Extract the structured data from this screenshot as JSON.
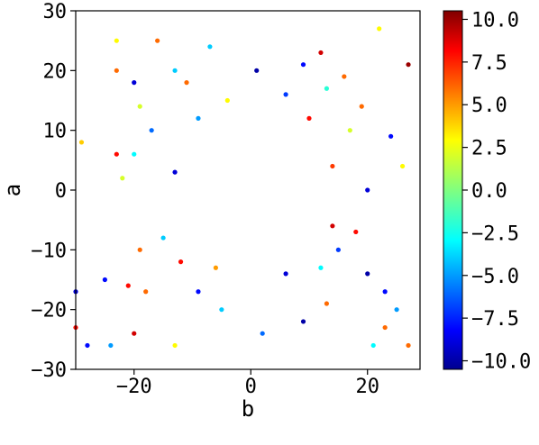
{
  "chart_data": {
    "type": "scatter",
    "title": "",
    "xlabel": "b",
    "ylabel": "a",
    "xlim": [
      -30,
      29
    ],
    "ylim": [
      -30,
      30
    ],
    "xticks": [
      -20,
      0,
      20
    ],
    "xtick_labels": [
      "−20",
      "0",
      "20"
    ],
    "yticks": [
      -30,
      -20,
      -10,
      0,
      10,
      20,
      30
    ],
    "ytick_labels": [
      "−30",
      "−20",
      "−10",
      "0",
      "10",
      "20",
      "30"
    ],
    "grid": false,
    "colorbar": {
      "min": -10.5,
      "max": 10.5,
      "colormap": "jet",
      "ticks": [
        10.0,
        7.5,
        5.0,
        2.5,
        0.0,
        -2.5,
        -5.0,
        -7.5,
        -10.0
      ],
      "tick_labels": [
        "10.0",
        "7.5",
        "5.0",
        "2.5",
        "0.0",
        "−2.5",
        "−5.0",
        "−7.5",
        "−10.0"
      ]
    },
    "points": [
      {
        "x": -23,
        "y": 25,
        "c": 3
      },
      {
        "x": -16,
        "y": 25,
        "c": 6
      },
      {
        "x": -7,
        "y": 24,
        "c": -4
      },
      {
        "x": 22,
        "y": 27,
        "c": 3
      },
      {
        "x": 27,
        "y": 21,
        "c": 10
      },
      {
        "x": 12,
        "y": 23,
        "c": 9
      },
      {
        "x": -20,
        "y": 18,
        "c": -9
      },
      {
        "x": -23,
        "y": 20,
        "c": 6
      },
      {
        "x": 1,
        "y": 20,
        "c": -10
      },
      {
        "x": 9,
        "y": 21,
        "c": -8
      },
      {
        "x": -13,
        "y": 20,
        "c": -4
      },
      {
        "x": 16,
        "y": 19,
        "c": 6
      },
      {
        "x": 19,
        "y": 14,
        "c": 6
      },
      {
        "x": -19,
        "y": 14,
        "c": 2
      },
      {
        "x": 24,
        "y": 9,
        "c": -8
      },
      {
        "x": -23,
        "y": 6,
        "c": 8
      },
      {
        "x": -20,
        "y": 6,
        "c": -3
      },
      {
        "x": 26,
        "y": 4,
        "c": 3
      },
      {
        "x": -29,
        "y": 8,
        "c": 4
      },
      {
        "x": -22,
        "y": 2,
        "c": 2
      },
      {
        "x": 20,
        "y": 0,
        "c": -9
      },
      {
        "x": -19,
        "y": -10,
        "c": 6
      },
      {
        "x": -25,
        "y": -15,
        "c": -8
      },
      {
        "x": -21,
        "y": -16,
        "c": 8
      },
      {
        "x": -30,
        "y": -17,
        "c": -9
      },
      {
        "x": -18,
        "y": -17,
        "c": 6
      },
      {
        "x": 20,
        "y": -14,
        "c": -10
      },
      {
        "x": 23,
        "y": -17,
        "c": -8
      },
      {
        "x": 25,
        "y": -20,
        "c": -5
      },
      {
        "x": -28,
        "y": -26,
        "c": -8
      },
      {
        "x": -24,
        "y": -26,
        "c": -5
      },
      {
        "x": -20,
        "y": -24,
        "c": 9
      },
      {
        "x": -13,
        "y": -26,
        "c": 3
      },
      {
        "x": 21,
        "y": -26,
        "c": -3
      },
      {
        "x": 23,
        "y": -23,
        "c": 6
      },
      {
        "x": 27,
        "y": -26,
        "c": 6
      },
      {
        "x": -30,
        "y": -23,
        "c": 8
      },
      {
        "x": -5,
        "y": -20,
        "c": -4
      },
      {
        "x": 2,
        "y": -24,
        "c": -6
      },
      {
        "x": 9,
        "y": -22,
        "c": -10
      },
      {
        "x": 13,
        "y": -19,
        "c": 6
      },
      {
        "x": -9,
        "y": -17,
        "c": -8
      },
      {
        "x": 12,
        "y": -13,
        "c": -3
      },
      {
        "x": -12,
        "y": -12,
        "c": 8
      },
      {
        "x": 15,
        "y": -10,
        "c": -7
      },
      {
        "x": -15,
        "y": -8,
        "c": -4
      },
      {
        "x": 14,
        "y": -6,
        "c": 9
      },
      {
        "x": -13,
        "y": 3,
        "c": -9
      },
      {
        "x": 14,
        "y": 4,
        "c": 7
      },
      {
        "x": -9,
        "y": 12,
        "c": -5
      },
      {
        "x": 10,
        "y": 12,
        "c": 8
      },
      {
        "x": -4,
        "y": 15,
        "c": 3
      },
      {
        "x": 6,
        "y": 16,
        "c": -7
      },
      {
        "x": -11,
        "y": 18,
        "c": 6
      },
      {
        "x": 13,
        "y": 17,
        "c": -2
      },
      {
        "x": -6,
        "y": -13,
        "c": 5
      },
      {
        "x": 6,
        "y": -14,
        "c": -9
      },
      {
        "x": 18,
        "y": -7,
        "c": 8
      },
      {
        "x": -17,
        "y": 10,
        "c": -6
      },
      {
        "x": 17,
        "y": 10,
        "c": 2
      }
    ]
  }
}
